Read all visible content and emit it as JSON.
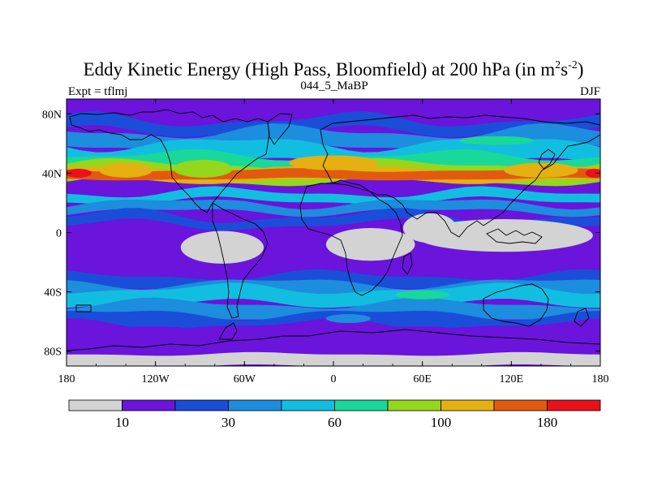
{
  "chart_data": {
    "type": "heatmap",
    "title_main": "Eddy Kinetic Energy (High Pass, Bloomfield) at 200 hPa (in m",
    "title_sup1": "2",
    "title_mid": "s",
    "title_sup2": "-2",
    "title_end": ")",
    "left_label": "Expt = tflmj",
    "center_label": "044_5_MaBP",
    "right_label": "DJF",
    "x_ticks": [
      {
        "lon": -180,
        "label": "180"
      },
      {
        "lon": -120,
        "label": "120W"
      },
      {
        "lon": -60,
        "label": "60W"
      },
      {
        "lon": 0,
        "label": "0"
      },
      {
        "lon": 60,
        "label": "60E"
      },
      {
        "lon": 120,
        "label": "120E"
      },
      {
        "lon": 180,
        "label": "180"
      }
    ],
    "y_ticks": [
      {
        "lat": 80,
        "label": "80N"
      },
      {
        "lat": 40,
        "label": "40N"
      },
      {
        "lat": 0,
        "label": "0"
      },
      {
        "lat": -40,
        "label": "40S"
      },
      {
        "lat": -80,
        "label": "80S"
      }
    ],
    "xlim": [
      -180,
      180
    ],
    "ylim": [
      -90,
      90
    ],
    "colorbar": {
      "colors": [
        "#d3d3d3",
        "#6a14dc",
        "#1a4ed8",
        "#1d8ddd",
        "#12bee0",
        "#19d89a",
        "#94d71c",
        "#e4b012",
        "#e25a10",
        "#e8121a"
      ],
      "labels": [
        {
          "boundary": 1,
          "label": "10"
        },
        {
          "boundary": 3,
          "label": "30"
        },
        {
          "boundary": 5,
          "label": "60"
        },
        {
          "boundary": 7,
          "label": "100"
        },
        {
          "boundary": 9,
          "label": "180"
        }
      ]
    },
    "field_bands": [
      {
        "level": 1,
        "lat_mid": 80,
        "amp": 4,
        "half": 3
      },
      {
        "level": 2,
        "lat_mid": 72,
        "amp": 4,
        "half": 4
      },
      {
        "level": 3,
        "lat_mid": 63,
        "amp": 4,
        "half": 5
      },
      {
        "level": 4,
        "lat_mid": 54,
        "amp": 4,
        "half": 6
      },
      {
        "level": 5,
        "lat_mid": 46,
        "amp": 3,
        "half": 6
      },
      {
        "level": 6,
        "lat_mid": 40,
        "amp": 3,
        "half": 6
      },
      {
        "level": 7,
        "lat_mid": 39,
        "amp": 2,
        "half": 4
      },
      {
        "level": 8,
        "lat_mid": 39,
        "amp": 1,
        "half": 3
      },
      {
        "level": 4,
        "lat_mid": 24,
        "amp": 3,
        "half": 3
      },
      {
        "level": 3,
        "lat_mid": 17,
        "amp": 3,
        "half": 3
      },
      {
        "level": 2,
        "lat_mid": 8,
        "amp": 4,
        "half": 3
      },
      {
        "level": 2,
        "lat_mid": -33,
        "amp": 3,
        "half": 4
      },
      {
        "level": 3,
        "lat_mid": -39,
        "amp": 3,
        "half": 5
      },
      {
        "level": 4,
        "lat_mid": -43,
        "amp": 3,
        "half": 5
      },
      {
        "level": 3,
        "lat_mid": -53,
        "amp": 3,
        "half": 5
      },
      {
        "level": 2,
        "lat_mid": -60,
        "amp": 3,
        "half": 5
      },
      {
        "level": 1,
        "lat_mid": -68,
        "amp": 3,
        "half": 6
      },
      {
        "level": 0,
        "lat_mid": -86,
        "amp": 1,
        "half": 4
      }
    ],
    "field_blobs": [
      {
        "level": 9,
        "lon": -172,
        "lat": 40,
        "rlon": 9,
        "rlat": 3
      },
      {
        "level": 9,
        "lon": 176,
        "lat": 40,
        "rlon": 6,
        "rlat": 3
      },
      {
        "level": 7,
        "lon": 0,
        "lat": 47,
        "rlon": 30,
        "rlat": 5
      },
      {
        "level": 6,
        "lon": -88,
        "lat": 43,
        "rlon": 20,
        "rlat": 6
      },
      {
        "level": 7,
        "lon": -140,
        "lat": 42,
        "rlon": 18,
        "rlat": 5
      },
      {
        "level": 7,
        "lon": 140,
        "lat": 42,
        "rlon": 25,
        "rlat": 5
      },
      {
        "level": 5,
        "lon": 110,
        "lat": 62,
        "rlon": 25,
        "rlat": 3
      },
      {
        "level": 5,
        "lon": 60,
        "lat": -42,
        "rlon": 18,
        "rlat": 3
      },
      {
        "level": 3,
        "lon": 10,
        "lat": -58,
        "rlon": 15,
        "rlat": 3
      },
      {
        "level": 1,
        "lon": 20,
        "lat": -65,
        "rlon": 12,
        "rlat": 3
      }
    ],
    "low_regions": [
      {
        "name": "south-america-pacific",
        "lon": -75,
        "lat": -10,
        "rlon": 28,
        "rlat": 11
      },
      {
        "name": "atlantic-africa",
        "lon": 25,
        "lat": -8,
        "rlon": 30,
        "rlat": 11
      },
      {
        "name": "indian-ocean",
        "lon": 115,
        "lat": -2,
        "rlon": 60,
        "rlat": 11
      },
      {
        "name": "arabian-sea",
        "lon": 65,
        "lat": 3,
        "rlon": 18,
        "rlat": 10
      }
    ]
  }
}
